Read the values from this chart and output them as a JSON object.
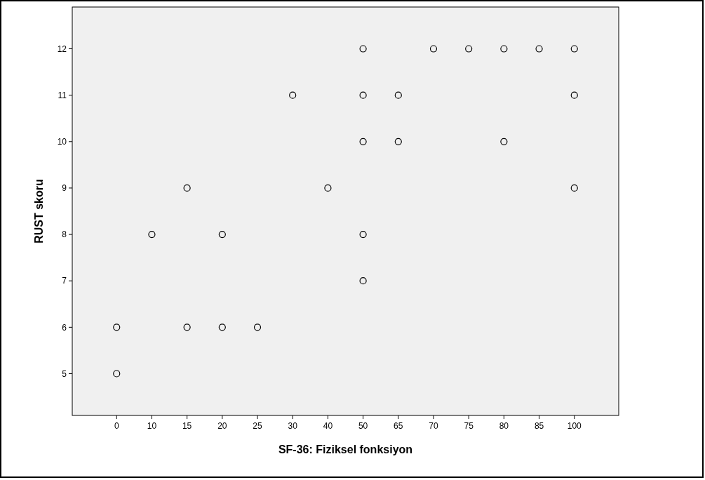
{
  "chart_data": {
    "type": "scatter",
    "xlabel": "SF-36: Fiziksel fonksiyon",
    "ylabel": "RUST skoru",
    "categories": [
      "0",
      "10",
      "15",
      "20",
      "25",
      "30",
      "40",
      "50",
      "65",
      "70",
      "75",
      "80",
      "85",
      "100"
    ],
    "ylim": [
      4.1,
      12.9
    ],
    "yticks": [
      5,
      6,
      7,
      8,
      9,
      10,
      11,
      12
    ],
    "grid": false,
    "marker": "circle",
    "series": [
      {
        "color": "#000000",
        "x": [
          "0",
          "0",
          "10",
          "15",
          "15",
          "20",
          "20",
          "25",
          "30",
          "40",
          "50",
          "50",
          "50",
          "50",
          "50",
          "65",
          "65",
          "70",
          "75",
          "80",
          "80",
          "85",
          "100",
          "100",
          "100"
        ],
        "values": [
          6,
          5,
          8,
          9,
          6,
          8,
          6,
          6,
          11,
          9,
          12,
          11,
          10,
          8,
          7,
          11,
          10,
          12,
          12,
          12,
          10,
          12,
          12,
          11,
          9
        ]
      }
    ]
  }
}
